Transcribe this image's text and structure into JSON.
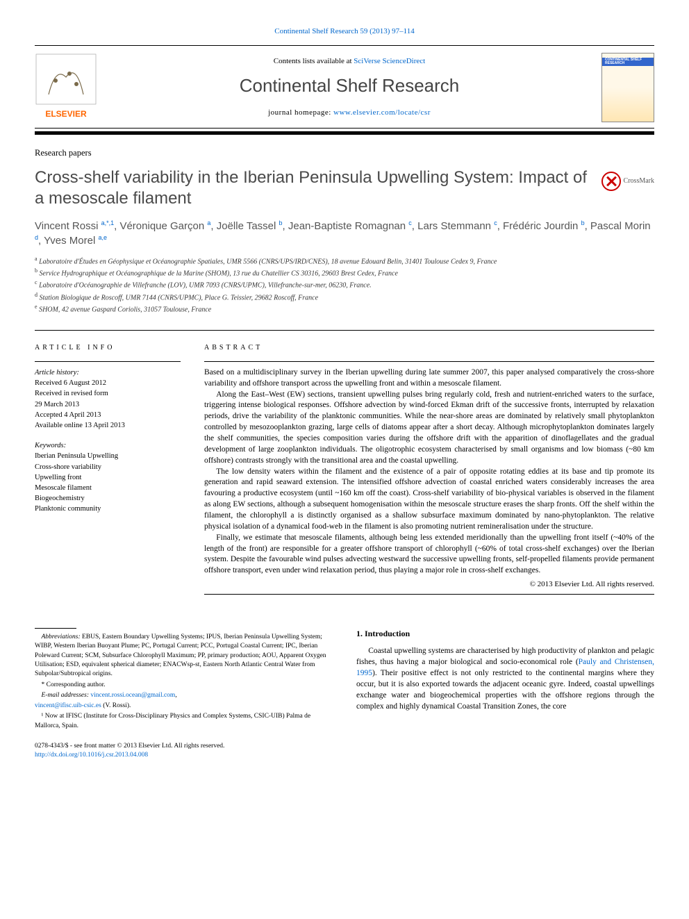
{
  "top_link": {
    "label": "Continental Shelf Research 59 (2013) 97–114"
  },
  "header": {
    "contents_prefix": "Contents lists available at ",
    "contents_link": "SciVerse ScienceDirect",
    "journal_title": "Continental Shelf Research",
    "homepage_prefix": "journal homepage: ",
    "homepage_link": "www.elsevier.com/locate/csr",
    "cover_label": "CONTINENTAL SHELF RESEARCH"
  },
  "section_label": "Research papers",
  "title": "Cross-shelf variability in the Iberian Peninsula Upwelling System: Impact of a mesoscale filament",
  "crossmark_label": "CrossMark",
  "authors_html": "Vincent Rossi <span class='sup'>a,*,1</span>, Véronique Garçon <span class='sup'>a</span>, Joëlle Tassel <span class='sup'>b</span>, Jean-Baptiste Romagnan <span class='sup'>c</span>, Lars Stemmann <span class='sup'>c</span>, Frédéric Jourdin <span class='sup'>b</span>, Pascal Morin <span class='sup'>d</span>, Yves Morel <span class='sup'>a,e</span>",
  "affiliations": [
    {
      "sup": "a",
      "text": "Laboratoire d'Études en Géophysique et Océanographie Spatiales, UMR 5566 (CNRS/UPS/IRD/CNES), 18 avenue Edouard Belin, 31401 Toulouse Cedex 9, France"
    },
    {
      "sup": "b",
      "text": "Service Hydrographique et Océanographique de la Marine (SHOM), 13 rue du Chatellier CS 30316, 29603 Brest Cedex, France"
    },
    {
      "sup": "c",
      "text": "Laboratoire d'Océanographie de Villefranche (LOV), UMR 7093 (CNRS/UPMC), Villefranche-sur-mer, 06230, France."
    },
    {
      "sup": "d",
      "text": "Station Biologique de Roscoff, UMR 7144 (CNRS/UPMC), Place G. Teissier, 29682 Roscoff, France"
    },
    {
      "sup": "e",
      "text": "SHOM, 42 avenue Gaspard Coriolis, 31057 Toulouse, France"
    }
  ],
  "article_info": {
    "heading": "ARTICLE INFO",
    "history_label": "Article history:",
    "history": [
      "Received 6 August 2012",
      "Received in revised form",
      "29 March 2013",
      "Accepted 4 April 2013",
      "Available online 13 April 2013"
    ],
    "keywords_label": "Keywords:",
    "keywords": [
      "Iberian Peninsula Upwelling",
      "Cross-shore variability",
      "Upwelling front",
      "Mesoscale filament",
      "Biogeochemistry",
      "Planktonic community"
    ]
  },
  "abstract": {
    "heading": "ABSTRACT",
    "paragraphs": [
      "Based on a multidisciplinary survey in the Iberian upwelling during late summer 2007, this paper analysed comparatively the cross-shore variability and offshore transport across the upwelling front and within a mesoscale filament.",
      "Along the East–West (EW) sections, transient upwelling pulses bring regularly cold, fresh and nutrient-enriched waters to the surface, triggering intense biological responses. Offshore advection by wind-forced Ekman drift of the successive fronts, interrupted by relaxation periods, drive the variability of the planktonic communities. While the near-shore areas are dominated by relatively small phytoplankton controlled by mesozooplankton grazing, large cells of diatoms appear after a short decay. Although microphytoplankton dominates largely the shelf communities, the species composition varies during the offshore drift with the apparition of dinoflagellates and the gradual development of large zooplankton individuals. The oligotrophic ecosystem characterised by small organisms and low biomass (~80 km offshore) contrasts strongly with the transitional area and the coastal upwelling.",
      "The low density waters within the filament and the existence of a pair of opposite rotating eddies at its base and tip promote its generation and rapid seaward extension. The intensified offshore advection of coastal enriched waters considerably increases the area favouring a productive ecosystem (until ~160 km off the coast). Cross-shelf variability of bio-physical variables is observed in the filament as along EW sections, although a subsequent homogenisation within the mesoscale structure erases the sharp fronts. Off the shelf within the filament, the chlorophyll a is distinctly organised as a shallow subsurface maximum dominated by nano-phytoplankton. The relative physical isolation of a dynamical food-web in the filament is also promoting nutrient remineralisation under the structure.",
      "Finally, we estimate that mesoscale filaments, although being less extended meridionally than the upwelling front itself (~40% of the length of the front) are responsible for a greater offshore transport of chlorophyll (~60% of total cross-shelf exchanges) over the Iberian system. Despite the favourable wind pulses advecting westward the successive upwelling fronts, self-propelled filaments provide permanent offshore transport, even under wind relaxation period, thus playing a major role in cross-shelf exchanges."
    ],
    "copyright": "© 2013 Elsevier Ltd. All rights reserved."
  },
  "footnotes": {
    "abbrev_label": "Abbreviations:",
    "abbrev_text": " EBUS, Eastern Boundary Upwelling Systems; IPUS, Iberian Peninsula Upwelling System; WIBP, Western Iberian Buoyant Plume; PC, Portugal Current; PCC, Portugal Coastal Current; IPC, Iberian Poleward Current; SCM, Subsurface Chlorophyll Maximum; PP, primary production; AOU, Apparent Oxygen Utilisation; ESD, equivalent spherical diameter; ENACWsp-st, Eastern North Atlantic Central Water from Subpolar/Subtropical origins.",
    "corr": "* Corresponding author.",
    "email_label": "E-mail addresses:",
    "email1": "vincent.rossi.ocean@gmail.com",
    "email_sep": ",",
    "email2": "vincent@ifisc.uib-csic.es",
    "email_suffix": " (V. Rossi).",
    "now_at": "¹ Now at IFISC (Institute for Cross-Disciplinary Physics and Complex Systems, CSIC-UIB) Palma de Mallorca, Spain."
  },
  "intro": {
    "heading": "1.  Introduction",
    "p1_a": "Coastal upwelling systems are characterised by high productivity of plankton and pelagic fishes, thus having a major biological and socio-economical role (",
    "p1_cite": "Pauly and Christensen, 1995",
    "p1_b": "). Their positive effect is not only restricted to the continental margins where they occur, but it is also exported towards the adjacent oceanic gyre. Indeed, coastal upwellings exchange water and biogeochemical properties with the offshore regions through the complex and highly dynamical Coastal Transition Zones, the core"
  },
  "footer": {
    "line1": "0278-4343/$ - see front matter © 2013 Elsevier Ltd. All rights reserved.",
    "doi": "http://dx.doi.org/10.1016/j.csr.2013.04.008"
  },
  "colors": {
    "link": "#0066cc",
    "text": "#000000",
    "title_gray": "#4a4a4a",
    "author_gray": "#555555"
  }
}
